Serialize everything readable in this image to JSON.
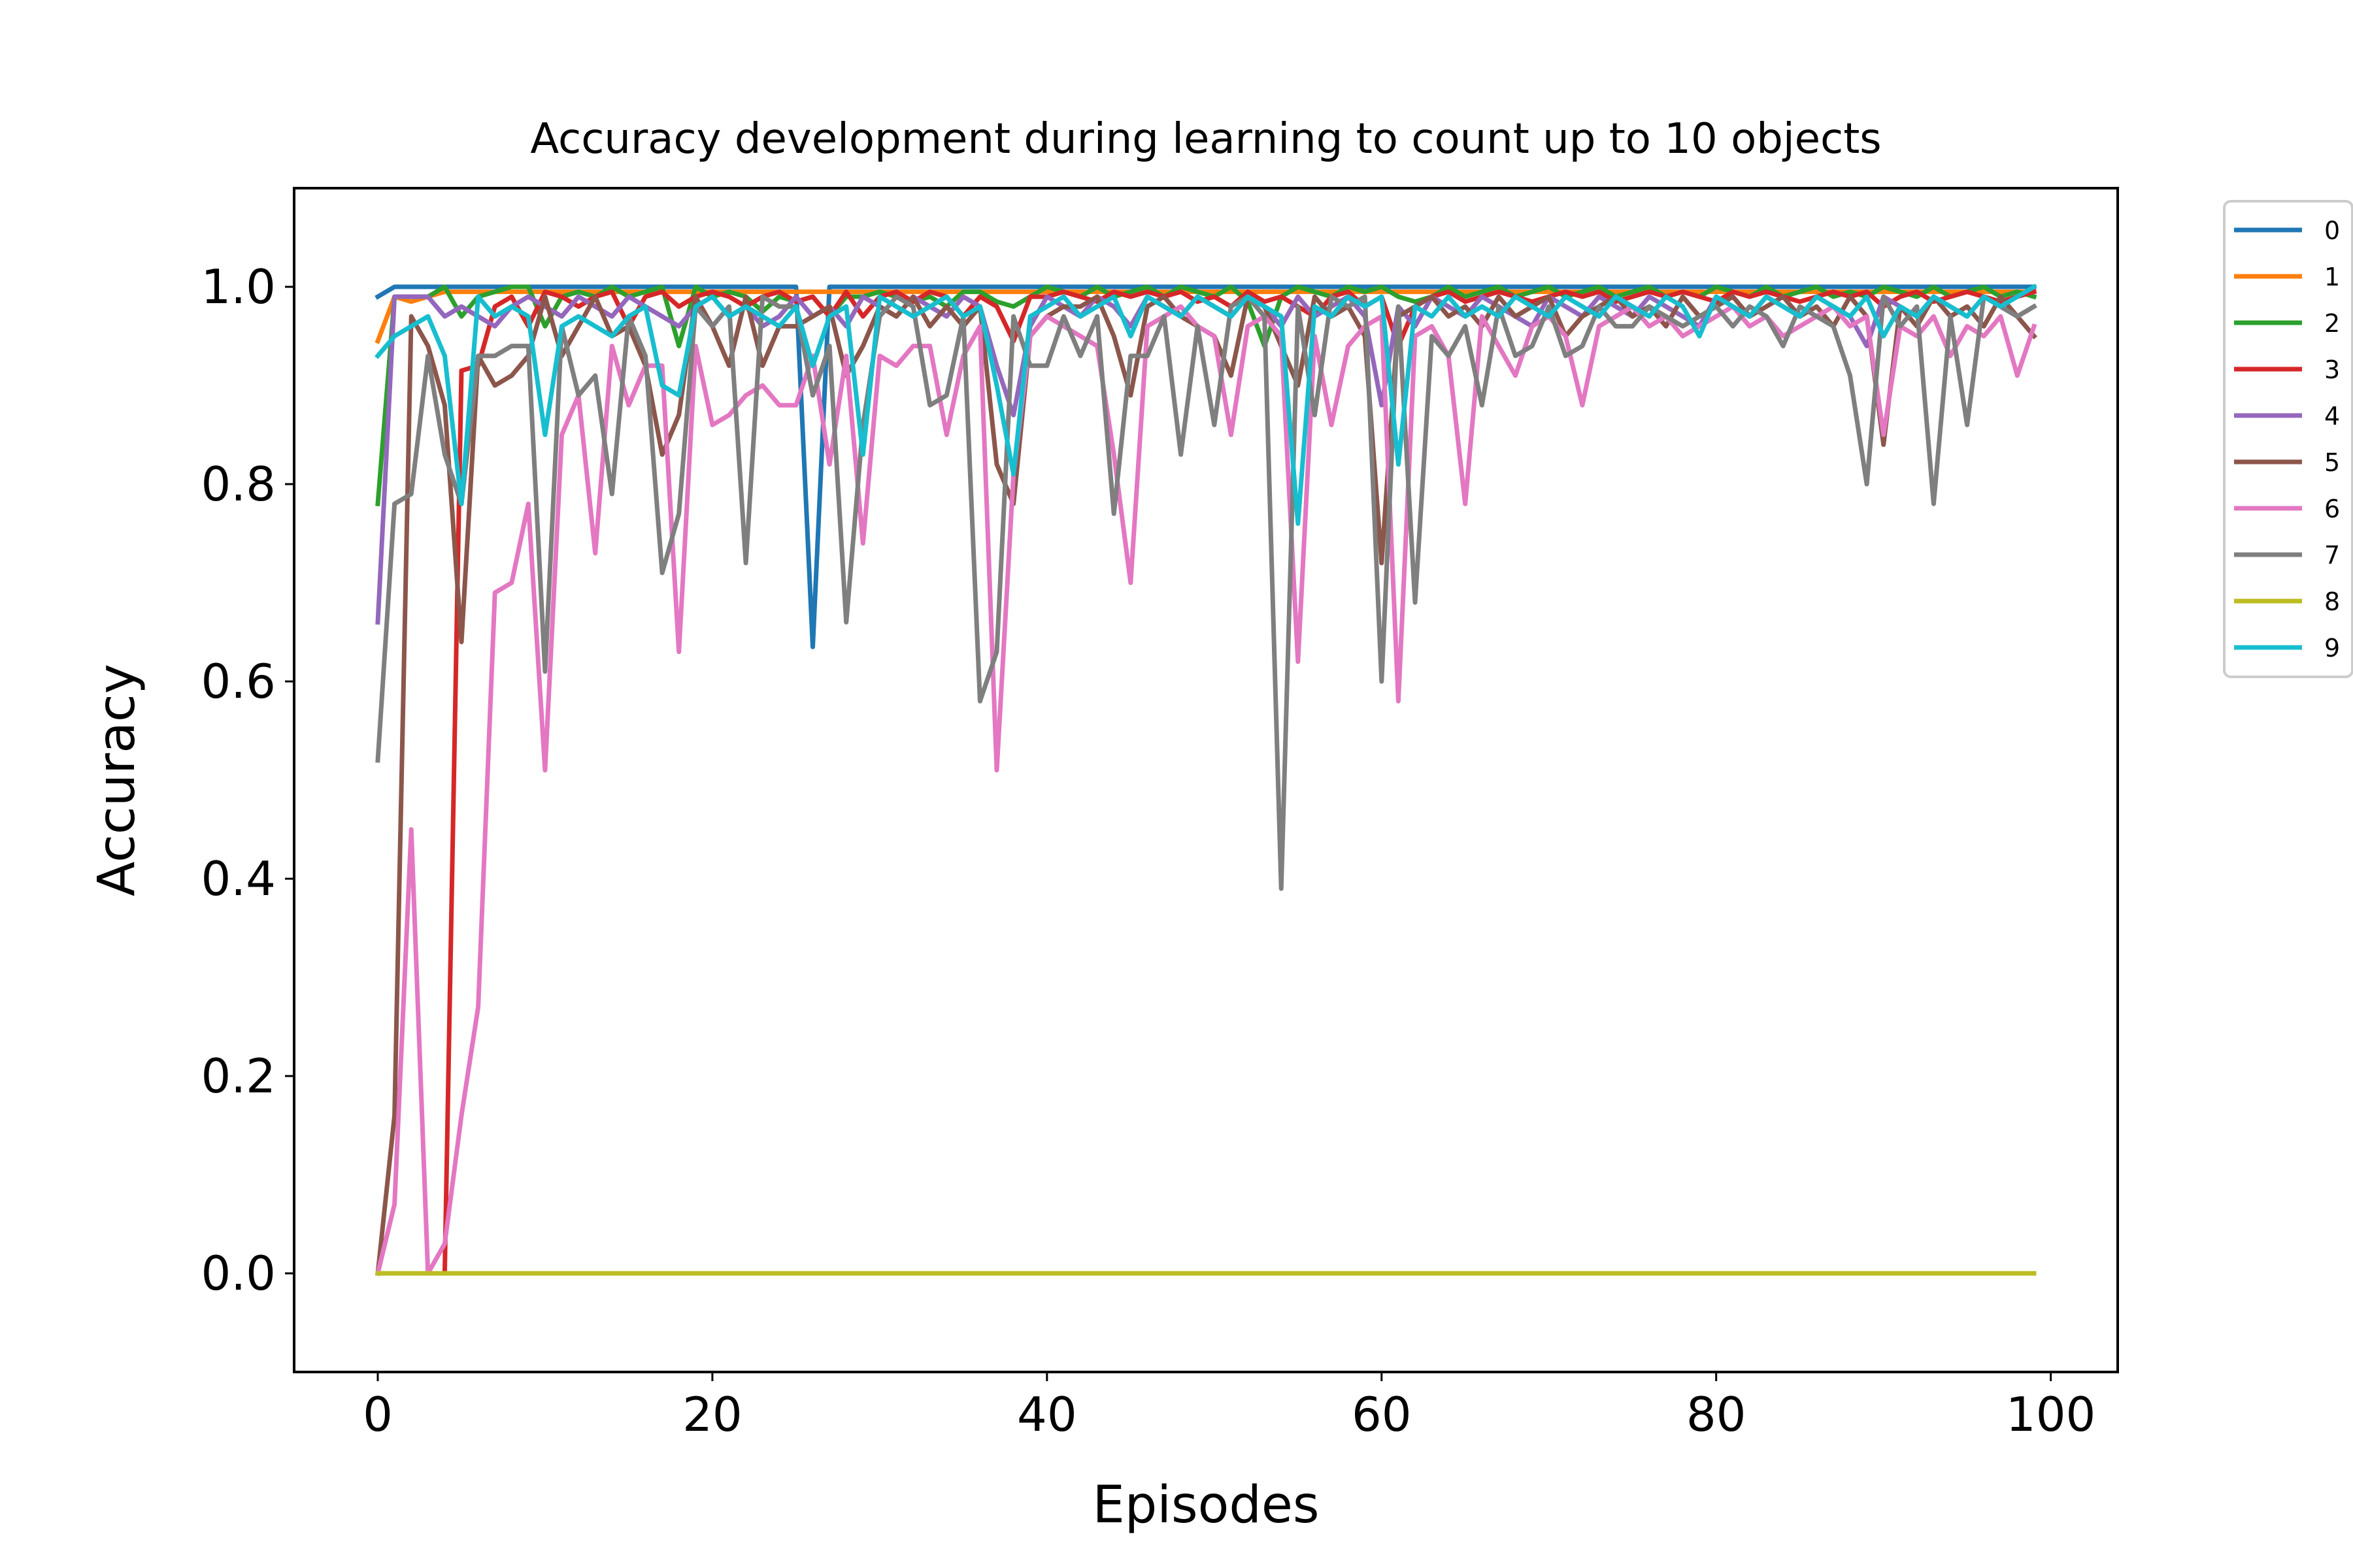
{
  "chart_data": {
    "type": "line",
    "title": "Accuracy development during learning to count up to 10 objects",
    "xlabel": "Episodes",
    "ylabel": "Accuracy",
    "xlim": [
      -5,
      104
    ],
    "ylim": [
      -0.1,
      1.1
    ],
    "xticks": [
      0,
      20,
      40,
      60,
      80,
      100
    ],
    "yticks": [
      0.0,
      0.2,
      0.4,
      0.6,
      0.8,
      1.0
    ],
    "xtick_labels": [
      "0",
      "20",
      "40",
      "60",
      "80",
      "100"
    ],
    "ytick_labels": [
      "0.0",
      "0.2",
      "0.4",
      "0.6",
      "0.8",
      "1.0"
    ],
    "grid": false,
    "legend_position": "outside-right-top",
    "series": [
      {
        "name": "0",
        "color": "#1f77b4",
        "values": [
          0.99,
          1.0,
          1.0,
          1.0,
          1.0,
          1.0,
          1.0,
          1.0,
          1.0,
          1.0,
          1.0,
          1.0,
          1.0,
          1.0,
          1.0,
          1.0,
          1.0,
          1.0,
          1.0,
          1.0,
          1.0,
          1.0,
          1.0,
          1.0,
          1.0,
          1.0,
          0.635,
          1.0,
          1.0,
          1.0,
          1.0,
          1.0,
          1.0,
          1.0,
          1.0,
          1.0,
          1.0,
          1.0,
          1.0,
          1.0,
          1.0,
          1.0,
          1.0,
          1.0,
          1.0,
          1.0,
          1.0,
          1.0,
          1.0,
          1.0,
          1.0,
          1.0,
          1.0,
          1.0,
          1.0,
          1.0,
          1.0,
          1.0,
          1.0,
          1.0,
          1.0,
          1.0,
          1.0,
          1.0,
          1.0,
          1.0,
          1.0,
          1.0,
          1.0,
          1.0,
          1.0,
          1.0,
          1.0,
          1.0,
          1.0,
          1.0,
          1.0,
          1.0,
          1.0,
          1.0,
          1.0,
          1.0,
          1.0,
          1.0,
          1.0,
          1.0,
          1.0,
          1.0,
          1.0,
          1.0,
          1.0,
          1.0,
          1.0,
          1.0,
          1.0,
          1.0,
          1.0,
          1.0,
          1.0,
          1.0
        ]
      },
      {
        "name": "1",
        "color": "#ff7f0e",
        "values": [
          0.945,
          0.99,
          0.985,
          0.99,
          0.995,
          0.995,
          0.995,
          0.995,
          0.995,
          0.995,
          0.995,
          0.995,
          0.995,
          0.995,
          0.995,
          0.995,
          0.995,
          0.995,
          0.995,
          0.995,
          0.995,
          0.995,
          0.995,
          0.995,
          0.995,
          0.995,
          0.995,
          0.995,
          0.995,
          0.995,
          0.995,
          0.995,
          0.995,
          0.995,
          0.995,
          0.995,
          0.995,
          0.995,
          0.995,
          0.995,
          0.995,
          0.995,
          0.995,
          0.995,
          0.995,
          0.995,
          0.995,
          0.995,
          0.995,
          0.995,
          0.995,
          0.995,
          0.995,
          0.995,
          0.995,
          0.995,
          0.995,
          0.995,
          0.995,
          0.995,
          0.995,
          0.995,
          0.995,
          0.995,
          0.995,
          0.995,
          0.995,
          0.995,
          0.995,
          0.995,
          0.995,
          0.995,
          0.995,
          0.995,
          0.995,
          0.995,
          0.995,
          0.995,
          0.995,
          0.995,
          0.995,
          0.995,
          0.995,
          0.995,
          0.995,
          0.995,
          0.995,
          0.995,
          0.995,
          0.995,
          0.995,
          0.995,
          0.995,
          0.995,
          0.995,
          0.995,
          0.995,
          0.995,
          0.995,
          0.995
        ]
      },
      {
        "name": "2",
        "color": "#2ca02c",
        "values": [
          0.78,
          0.99,
          0.99,
          0.99,
          1.0,
          0.97,
          0.99,
          0.995,
          1.0,
          1.0,
          0.96,
          0.99,
          0.995,
          0.99,
          1.0,
          0.99,
          0.995,
          1.0,
          0.94,
          1.0,
          0.99,
          0.995,
          0.99,
          0.975,
          0.99,
          0.985,
          0.99,
          0.97,
          0.99,
          0.99,
          0.995,
          0.99,
          0.985,
          0.99,
          0.98,
          0.995,
          0.995,
          0.985,
          0.98,
          0.99,
          1.0,
          0.995,
          0.99,
          1.0,
          0.99,
          0.995,
          1.0,
          0.99,
          1.0,
          0.995,
          0.99,
          1.0,
          0.985,
          0.94,
          0.99,
          1.0,
          0.995,
          0.99,
          1.0,
          0.995,
          1.0,
          0.99,
          0.985,
          0.99,
          1.0,
          0.99,
          0.995,
          1.0,
          0.99,
          0.995,
          1.0,
          0.99,
          0.995,
          1.0,
          0.99,
          0.995,
          1.0,
          0.99,
          0.995,
          0.99,
          1.0,
          0.995,
          0.99,
          1.0,
          0.99,
          0.995,
          1.0,
          0.99,
          0.995,
          0.99,
          1.0,
          0.995,
          0.99,
          1.0,
          0.99,
          0.995,
          1.0,
          0.99,
          0.995,
          0.99
        ]
      },
      {
        "name": "3",
        "color": "#d62728",
        "values": [
          0.0,
          0.0,
          0.0,
          0.0,
          0.0,
          0.915,
          0.92,
          0.98,
          0.99,
          0.96,
          0.995,
          0.99,
          0.98,
          0.99,
          0.995,
          0.96,
          0.99,
          0.995,
          0.98,
          0.99,
          0.995,
          0.99,
          0.98,
          0.99,
          0.995,
          0.985,
          0.99,
          0.97,
          0.995,
          0.97,
          0.99,
          0.995,
          0.985,
          0.995,
          0.99,
          0.97,
          0.99,
          0.98,
          0.945,
          0.99,
          0.99,
          0.995,
          0.99,
          0.985,
          0.995,
          0.99,
          0.995,
          0.99,
          0.995,
          0.985,
          0.99,
          0.98,
          0.995,
          0.985,
          0.99,
          0.98,
          0.97,
          0.99,
          0.995,
          0.98,
          0.99,
          0.94,
          0.98,
          0.99,
          0.995,
          0.985,
          0.99,
          0.995,
          0.99,
          0.985,
          0.99,
          0.995,
          0.99,
          0.995,
          0.985,
          0.99,
          0.995,
          0.99,
          0.995,
          0.99,
          0.985,
          0.995,
          0.99,
          0.995,
          0.99,
          0.985,
          0.99,
          0.995,
          0.99,
          0.995,
          0.98,
          0.99,
          0.995,
          0.985,
          0.99,
          0.995,
          0.99,
          0.985,
          0.99,
          0.995
        ]
      },
      {
        "name": "4",
        "color": "#9467bd",
        "values": [
          0.66,
          0.99,
          0.99,
          0.99,
          0.97,
          0.98,
          0.97,
          0.96,
          0.98,
          0.99,
          0.98,
          0.97,
          0.99,
          0.98,
          0.97,
          0.99,
          0.98,
          0.97,
          0.96,
          0.98,
          0.99,
          0.97,
          0.98,
          0.96,
          0.97,
          0.99,
          0.97,
          0.98,
          0.96,
          0.99,
          0.98,
          0.97,
          0.99,
          0.98,
          0.97,
          0.99,
          0.98,
          0.92,
          0.87,
          0.96,
          0.99,
          0.98,
          0.97,
          0.99,
          0.98,
          0.96,
          0.99,
          0.98,
          0.97,
          0.99,
          0.98,
          0.97,
          0.99,
          0.98,
          0.96,
          0.99,
          0.97,
          0.98,
          0.99,
          0.97,
          0.88,
          0.98,
          0.96,
          0.99,
          0.98,
          0.97,
          0.99,
          0.98,
          0.97,
          0.96,
          0.99,
          0.98,
          0.97,
          0.99,
          0.98,
          0.97,
          0.99,
          0.98,
          0.97,
          0.96,
          0.99,
          0.98,
          0.97,
          0.99,
          0.98,
          0.97,
          0.99,
          0.98,
          0.97,
          0.94,
          0.99,
          0.98,
          0.97,
          0.99,
          0.98,
          0.97,
          0.99,
          0.98,
          0.97,
          0.98
        ]
      },
      {
        "name": "5",
        "color": "#8c564b",
        "values": [
          0.0,
          0.16,
          0.97,
          0.94,
          0.88,
          0.64,
          0.93,
          0.9,
          0.91,
          0.93,
          0.99,
          0.93,
          0.96,
          0.99,
          0.95,
          0.96,
          0.92,
          0.83,
          0.87,
          0.99,
          0.96,
          0.92,
          0.99,
          0.92,
          0.96,
          0.96,
          0.97,
          0.98,
          0.91,
          0.94,
          0.98,
          0.97,
          0.99,
          0.96,
          0.98,
          0.96,
          0.98,
          0.82,
          0.78,
          0.95,
          0.97,
          0.98,
          0.98,
          0.99,
          0.95,
          0.89,
          0.98,
          0.99,
          0.97,
          0.96,
          0.95,
          0.91,
          0.99,
          0.98,
          0.94,
          0.9,
          0.99,
          0.97,
          0.98,
          0.95,
          0.72,
          0.97,
          0.98,
          0.99,
          0.97,
          0.98,
          0.96,
          0.99,
          0.97,
          0.98,
          0.99,
          0.95,
          0.97,
          0.98,
          0.99,
          0.97,
          0.98,
          0.96,
          0.99,
          0.97,
          0.98,
          0.99,
          0.97,
          0.98,
          0.99,
          0.97,
          0.98,
          0.96,
          0.99,
          0.97,
          0.84,
          0.98,
          0.96,
          0.99,
          0.97,
          0.98,
          0.96,
          0.99,
          0.97,
          0.95
        ]
      },
      {
        "name": "6",
        "color": "#e377c2",
        "values": [
          0.0,
          0.07,
          0.45,
          0.0,
          0.03,
          0.16,
          0.27,
          0.69,
          0.7,
          0.78,
          0.51,
          0.85,
          0.89,
          0.73,
          0.94,
          0.88,
          0.92,
          0.92,
          0.63,
          0.94,
          0.86,
          0.87,
          0.89,
          0.9,
          0.88,
          0.88,
          0.93,
          0.82,
          0.93,
          0.74,
          0.93,
          0.92,
          0.94,
          0.94,
          0.85,
          0.93,
          0.96,
          0.51,
          0.81,
          0.95,
          0.97,
          0.96,
          0.95,
          0.94,
          0.83,
          0.7,
          0.96,
          0.97,
          0.98,
          0.96,
          0.95,
          0.85,
          0.96,
          0.97,
          0.95,
          0.62,
          0.95,
          0.86,
          0.94,
          0.96,
          0.97,
          0.58,
          0.95,
          0.96,
          0.93,
          0.78,
          0.97,
          0.94,
          0.91,
          0.96,
          0.97,
          0.95,
          0.88,
          0.96,
          0.97,
          0.98,
          0.96,
          0.97,
          0.95,
          0.96,
          0.97,
          0.98,
          0.96,
          0.97,
          0.95,
          0.96,
          0.97,
          0.98,
          0.96,
          0.97,
          0.85,
          0.96,
          0.95,
          0.97,
          0.93,
          0.96,
          0.95,
          0.97,
          0.91,
          0.96
        ]
      },
      {
        "name": "7",
        "color": "#7f7f7f",
        "values": [
          0.52,
          0.78,
          0.79,
          0.93,
          0.83,
          0.78,
          0.93,
          0.93,
          0.94,
          0.94,
          0.61,
          0.96,
          0.89,
          0.91,
          0.79,
          0.97,
          0.93,
          0.71,
          0.77,
          0.98,
          0.96,
          0.98,
          0.72,
          0.99,
          0.98,
          0.98,
          0.89,
          0.94,
          0.66,
          0.86,
          0.97,
          0.99,
          0.98,
          0.88,
          0.89,
          0.97,
          0.58,
          0.63,
          0.97,
          0.92,
          0.92,
          0.97,
          0.93,
          0.97,
          0.77,
          0.93,
          0.93,
          0.97,
          0.83,
          0.96,
          0.86,
          0.98,
          0.99,
          0.97,
          0.39,
          0.98,
          0.87,
          0.99,
          0.98,
          0.99,
          0.6,
          0.98,
          0.68,
          0.95,
          0.93,
          0.96,
          0.88,
          0.98,
          0.93,
          0.94,
          0.98,
          0.93,
          0.94,
          0.98,
          0.96,
          0.96,
          0.98,
          0.97,
          0.96,
          0.97,
          0.98,
          0.96,
          0.98,
          0.97,
          0.94,
          0.98,
          0.97,
          0.96,
          0.91,
          0.8,
          0.99,
          0.96,
          0.98,
          0.78,
          0.97,
          0.86,
          0.99,
          0.98,
          0.97,
          0.98
        ]
      },
      {
        "name": "8",
        "color": "#bcbd22",
        "values": [
          0.0,
          0.0,
          0.0,
          0.0,
          0.0,
          0.0,
          0.0,
          0.0,
          0.0,
          0.0,
          0.0,
          0.0,
          0.0,
          0.0,
          0.0,
          0.0,
          0.0,
          0.0,
          0.0,
          0.0,
          0.0,
          0.0,
          0.0,
          0.0,
          0.0,
          0.0,
          0.0,
          0.0,
          0.0,
          0.0,
          0.0,
          0.0,
          0.0,
          0.0,
          0.0,
          0.0,
          0.0,
          0.0,
          0.0,
          0.0,
          0.0,
          0.0,
          0.0,
          0.0,
          0.0,
          0.0,
          0.0,
          0.0,
          0.0,
          0.0,
          0.0,
          0.0,
          0.0,
          0.0,
          0.0,
          0.0,
          0.0,
          0.0,
          0.0,
          0.0,
          0.0,
          0.0,
          0.0,
          0.0,
          0.0,
          0.0,
          0.0,
          0.0,
          0.0,
          0.0,
          0.0,
          0.0,
          0.0,
          0.0,
          0.0,
          0.0,
          0.0,
          0.0,
          0.0,
          0.0,
          0.0,
          0.0,
          0.0,
          0.0,
          0.0,
          0.0,
          0.0,
          0.0,
          0.0,
          0.0,
          0.0,
          0.0,
          0.0,
          0.0,
          0.0,
          0.0,
          0.0,
          0.0,
          0.0,
          0.0
        ]
      },
      {
        "name": "9",
        "color": "#17becf",
        "values": [
          0.93,
          0.95,
          0.96,
          0.97,
          0.93,
          0.78,
          0.99,
          0.97,
          0.98,
          0.97,
          0.85,
          0.96,
          0.97,
          0.96,
          0.95,
          0.97,
          0.98,
          0.9,
          0.89,
          0.98,
          0.99,
          0.97,
          0.98,
          0.97,
          0.96,
          0.98,
          0.92,
          0.97,
          0.98,
          0.83,
          0.99,
          0.98,
          0.97,
          0.98,
          0.99,
          0.97,
          0.98,
          0.9,
          0.81,
          0.97,
          0.98,
          0.99,
          0.97,
          0.98,
          0.99,
          0.95,
          0.99,
          0.98,
          0.97,
          0.99,
          0.98,
          0.97,
          0.99,
          0.98,
          0.97,
          0.76,
          0.98,
          0.97,
          0.99,
          0.98,
          0.99,
          0.82,
          0.98,
          0.97,
          0.99,
          0.97,
          0.98,
          0.97,
          0.99,
          0.98,
          0.97,
          0.99,
          0.98,
          0.97,
          0.99,
          0.98,
          0.97,
          0.99,
          0.98,
          0.95,
          0.99,
          0.98,
          0.97,
          0.99,
          0.98,
          0.97,
          0.99,
          0.98,
          0.97,
          0.99,
          0.95,
          0.98,
          0.97,
          0.99,
          0.98,
          0.97,
          0.99,
          0.98,
          0.99,
          1.0
        ]
      }
    ]
  }
}
